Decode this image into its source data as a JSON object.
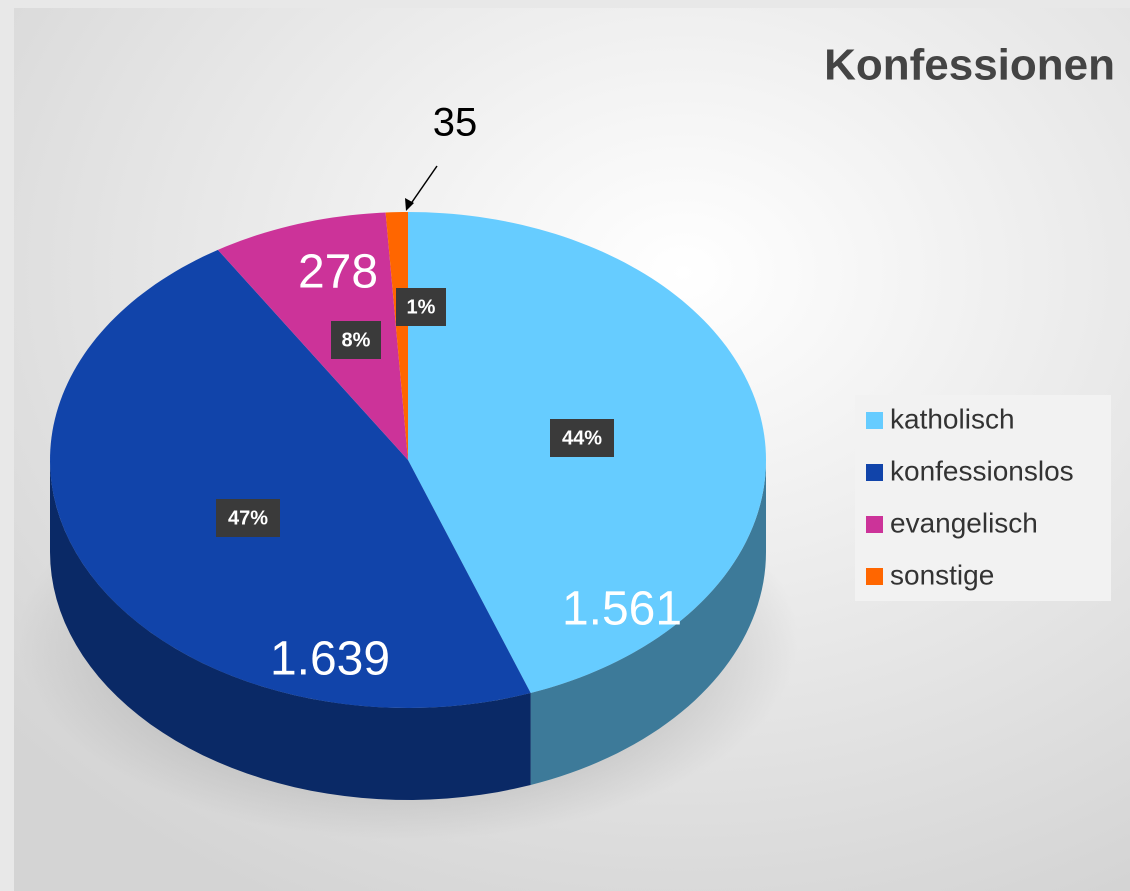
{
  "chart_data": {
    "type": "pie",
    "title": "Konfessionen",
    "categories": [
      "katholisch",
      "konfessionslos",
      "evangelisch",
      "sonstige"
    ],
    "values": [
      1561,
      1639,
      278,
      35
    ],
    "value_labels": [
      "1.561",
      "1.639",
      "278",
      "35"
    ],
    "percent_labels": [
      "44%",
      "47%",
      "8%",
      "1%"
    ],
    "colors": [
      "#66ccff",
      "#1144aa",
      "#cc3399",
      "#ff6600"
    ],
    "legend": "right"
  }
}
